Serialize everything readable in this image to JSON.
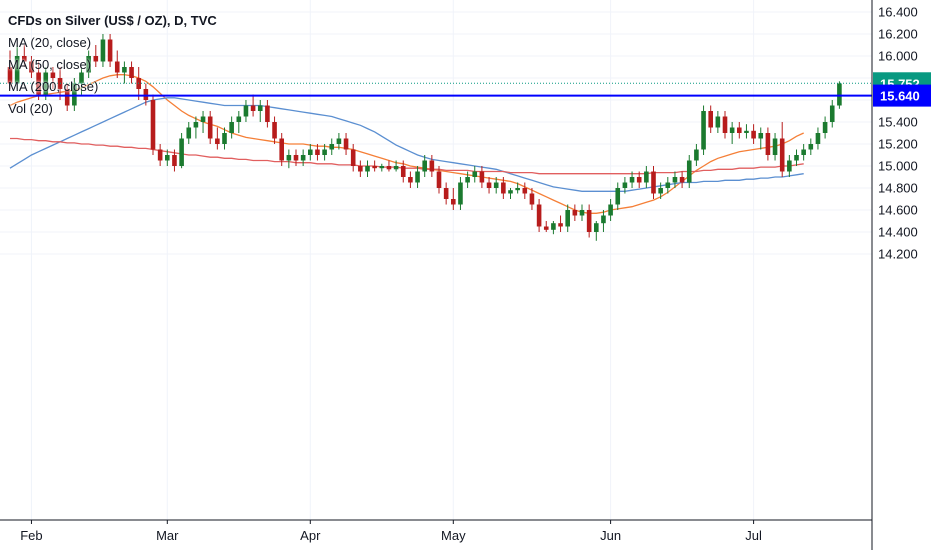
{
  "header": {
    "title": "CFDs on Silver (US$ / OZ), D, TVC",
    "indicators": [
      "MA (20, close)",
      "MA (50, close)",
      "MA (200, close)",
      "Vol (20)"
    ]
  },
  "chart_data": {
    "type": "candlestick",
    "title": "CFDs on Silver (US$ / OZ), D, TVC",
    "ylim": [
      14.1,
      16.5
    ],
    "y_ticks": [
      "14.200",
      "14.400",
      "14.600",
      "14.800",
      "15.000",
      "15.200",
      "15.400",
      "15.600",
      "15.800",
      "16.000",
      "16.200",
      "16.400"
    ],
    "x_ticks": [
      {
        "label": "Feb",
        "index": 3
      },
      {
        "label": "Mar",
        "index": 22
      },
      {
        "label": "Apr",
        "index": 42
      },
      {
        "label": "May",
        "index": 62
      },
      {
        "label": "Jun",
        "index": 84
      },
      {
        "label": "Jul",
        "index": 104
      }
    ],
    "horizontal_line": {
      "value": 15.64,
      "label": "15.640",
      "color": "#0000ff"
    },
    "last_price": {
      "value": 15.752,
      "label": "15.752",
      "color": "#089981"
    },
    "candles": [
      {
        "o": 15.9,
        "h": 16.05,
        "l": 15.7,
        "c": 15.75
      },
      {
        "o": 15.75,
        "h": 16.1,
        "l": 15.7,
        "c": 16.0
      },
      {
        "o": 16.0,
        "h": 16.1,
        "l": 15.9,
        "c": 15.95
      },
      {
        "o": 15.95,
        "h": 16.0,
        "l": 15.8,
        "c": 15.85
      },
      {
        "o": 15.85,
        "h": 15.95,
        "l": 15.6,
        "c": 15.65
      },
      {
        "o": 15.65,
        "h": 15.9,
        "l": 15.6,
        "c": 15.85
      },
      {
        "o": 15.85,
        "h": 15.9,
        "l": 15.7,
        "c": 15.8
      },
      {
        "o": 15.8,
        "h": 15.9,
        "l": 15.6,
        "c": 15.7
      },
      {
        "o": 15.7,
        "h": 15.75,
        "l": 15.5,
        "c": 15.55
      },
      {
        "o": 15.55,
        "h": 15.8,
        "l": 15.5,
        "c": 15.75
      },
      {
        "o": 15.75,
        "h": 15.9,
        "l": 15.65,
        "c": 15.85
      },
      {
        "o": 15.85,
        "h": 16.05,
        "l": 15.8,
        "c": 16.0
      },
      {
        "o": 16.0,
        "h": 16.1,
        "l": 15.9,
        "c": 15.95
      },
      {
        "o": 15.95,
        "h": 16.2,
        "l": 15.9,
        "c": 16.15
      },
      {
        "o": 16.15,
        "h": 16.2,
        "l": 15.9,
        "c": 15.95
      },
      {
        "o": 15.95,
        "h": 16.05,
        "l": 15.8,
        "c": 15.85
      },
      {
        "o": 15.85,
        "h": 15.95,
        "l": 15.75,
        "c": 15.9
      },
      {
        "o": 15.9,
        "h": 15.95,
        "l": 15.75,
        "c": 15.8
      },
      {
        "o": 15.8,
        "h": 15.9,
        "l": 15.6,
        "c": 15.7
      },
      {
        "o": 15.7,
        "h": 15.75,
        "l": 15.55,
        "c": 15.6
      },
      {
        "o": 15.6,
        "h": 15.65,
        "l": 15.1,
        "c": 15.15
      },
      {
        "o": 15.15,
        "h": 15.2,
        "l": 15.0,
        "c": 15.05
      },
      {
        "o": 15.05,
        "h": 15.15,
        "l": 15.0,
        "c": 15.1
      },
      {
        "o": 15.1,
        "h": 15.15,
        "l": 14.95,
        "c": 15.0
      },
      {
        "o": 15.0,
        "h": 15.3,
        "l": 14.98,
        "c": 15.25
      },
      {
        "o": 15.25,
        "h": 15.4,
        "l": 15.2,
        "c": 15.35
      },
      {
        "o": 15.35,
        "h": 15.45,
        "l": 15.25,
        "c": 15.4
      },
      {
        "o": 15.4,
        "h": 15.5,
        "l": 15.3,
        "c": 15.45
      },
      {
        "o": 15.45,
        "h": 15.5,
        "l": 15.2,
        "c": 15.25
      },
      {
        "o": 15.25,
        "h": 15.35,
        "l": 15.15,
        "c": 15.2
      },
      {
        "o": 15.2,
        "h": 15.35,
        "l": 15.15,
        "c": 15.3
      },
      {
        "o": 15.3,
        "h": 15.45,
        "l": 15.25,
        "c": 15.4
      },
      {
        "o": 15.4,
        "h": 15.5,
        "l": 15.3,
        "c": 15.45
      },
      {
        "o": 15.45,
        "h": 15.6,
        "l": 15.4,
        "c": 15.55
      },
      {
        "o": 15.55,
        "h": 15.65,
        "l": 15.45,
        "c": 15.5
      },
      {
        "o": 15.5,
        "h": 15.6,
        "l": 15.4,
        "c": 15.55
      },
      {
        "o": 15.55,
        "h": 15.6,
        "l": 15.35,
        "c": 15.4
      },
      {
        "o": 15.4,
        "h": 15.45,
        "l": 15.2,
        "c": 15.25
      },
      {
        "o": 15.25,
        "h": 15.3,
        "l": 15.0,
        "c": 15.05
      },
      {
        "o": 15.05,
        "h": 15.15,
        "l": 14.98,
        "c": 15.1
      },
      {
        "o": 15.1,
        "h": 15.15,
        "l": 15.0,
        "c": 15.05
      },
      {
        "o": 15.05,
        "h": 15.15,
        "l": 15.0,
        "c": 15.1
      },
      {
        "o": 15.1,
        "h": 15.2,
        "l": 15.05,
        "c": 15.15
      },
      {
        "o": 15.15,
        "h": 15.2,
        "l": 15.05,
        "c": 15.1
      },
      {
        "o": 15.1,
        "h": 15.2,
        "l": 15.05,
        "c": 15.15
      },
      {
        "o": 15.15,
        "h": 15.25,
        "l": 15.1,
        "c": 15.2
      },
      {
        "o": 15.2,
        "h": 15.3,
        "l": 15.15,
        "c": 15.25
      },
      {
        "o": 15.25,
        "h": 15.3,
        "l": 15.1,
        "c": 15.15
      },
      {
        "o": 15.15,
        "h": 15.2,
        "l": 14.95,
        "c": 15.0
      },
      {
        "o": 15.0,
        "h": 15.05,
        "l": 14.9,
        "c": 14.95
      },
      {
        "o": 14.95,
        "h": 15.05,
        "l": 14.9,
        "c": 15.0
      },
      {
        "o": 15.0,
        "h": 15.05,
        "l": 14.95,
        "c": 14.98
      },
      {
        "o": 14.98,
        "h": 15.02,
        "l": 14.95,
        "c": 15.0
      },
      {
        "o": 15.0,
        "h": 15.05,
        "l": 14.95,
        "c": 14.97
      },
      {
        "o": 14.97,
        "h": 15.05,
        "l": 14.95,
        "c": 15.0
      },
      {
        "o": 15.0,
        "h": 15.05,
        "l": 14.85,
        "c": 14.9
      },
      {
        "o": 14.9,
        "h": 14.95,
        "l": 14.8,
        "c": 14.85
      },
      {
        "o": 14.85,
        "h": 15.0,
        "l": 14.8,
        "c": 14.95
      },
      {
        "o": 14.95,
        "h": 15.1,
        "l": 14.9,
        "c": 15.05
      },
      {
        "o": 15.05,
        "h": 15.1,
        "l": 14.9,
        "c": 14.95
      },
      {
        "o": 14.95,
        "h": 15.0,
        "l": 14.75,
        "c": 14.8
      },
      {
        "o": 14.8,
        "h": 14.85,
        "l": 14.65,
        "c": 14.7
      },
      {
        "o": 14.7,
        "h": 14.8,
        "l": 14.6,
        "c": 14.65
      },
      {
        "o": 14.65,
        "h": 14.9,
        "l": 14.6,
        "c": 14.85
      },
      {
        "o": 14.85,
        "h": 14.95,
        "l": 14.8,
        "c": 14.9
      },
      {
        "o": 14.9,
        "h": 15.0,
        "l": 14.85,
        "c": 14.95
      },
      {
        "o": 14.95,
        "h": 15.0,
        "l": 14.8,
        "c": 14.85
      },
      {
        "o": 14.85,
        "h": 14.9,
        "l": 14.75,
        "c": 14.8
      },
      {
        "o": 14.8,
        "h": 14.9,
        "l": 14.75,
        "c": 14.85
      },
      {
        "o": 14.85,
        "h": 14.9,
        "l": 14.7,
        "c": 14.75
      },
      {
        "o": 14.75,
        "h": 14.8,
        "l": 14.7,
        "c": 14.78
      },
      {
        "o": 14.78,
        "h": 14.85,
        "l": 14.75,
        "c": 14.8
      },
      {
        "o": 14.8,
        "h": 14.85,
        "l": 14.7,
        "c": 14.75
      },
      {
        "o": 14.75,
        "h": 14.8,
        "l": 14.6,
        "c": 14.65
      },
      {
        "o": 14.65,
        "h": 14.7,
        "l": 14.4,
        "c": 14.45
      },
      {
        "o": 14.45,
        "h": 14.5,
        "l": 14.4,
        "c": 14.42
      },
      {
        "o": 14.42,
        "h": 14.5,
        "l": 14.38,
        "c": 14.48
      },
      {
        "o": 14.48,
        "h": 14.55,
        "l": 14.4,
        "c": 14.45
      },
      {
        "o": 14.45,
        "h": 14.65,
        "l": 14.4,
        "c": 14.6
      },
      {
        "o": 14.6,
        "h": 14.65,
        "l": 14.5,
        "c": 14.55
      },
      {
        "o": 14.55,
        "h": 14.65,
        "l": 14.5,
        "c": 14.6
      },
      {
        "o": 14.6,
        "h": 14.65,
        "l": 14.35,
        "c": 14.4
      },
      {
        "o": 14.4,
        "h": 14.5,
        "l": 14.32,
        "c": 14.48
      },
      {
        "o": 14.48,
        "h": 14.6,
        "l": 14.4,
        "c": 14.55
      },
      {
        "o": 14.55,
        "h": 14.7,
        "l": 14.5,
        "c": 14.65
      },
      {
        "o": 14.65,
        "h": 14.85,
        "l": 14.6,
        "c": 14.8
      },
      {
        "o": 14.8,
        "h": 14.9,
        "l": 14.75,
        "c": 14.85
      },
      {
        "o": 14.85,
        "h": 14.95,
        "l": 14.8,
        "c": 14.9
      },
      {
        "o": 14.9,
        "h": 14.95,
        "l": 14.8,
        "c": 14.85
      },
      {
        "o": 14.85,
        "h": 15.0,
        "l": 14.8,
        "c": 14.95
      },
      {
        "o": 14.95,
        "h": 15.0,
        "l": 14.7,
        "c": 14.75
      },
      {
        "o": 14.75,
        "h": 14.85,
        "l": 14.7,
        "c": 14.8
      },
      {
        "o": 14.8,
        "h": 14.9,
        "l": 14.75,
        "c": 14.85
      },
      {
        "o": 14.85,
        "h": 14.95,
        "l": 14.8,
        "c": 14.9
      },
      {
        "o": 14.9,
        "h": 14.95,
        "l": 14.8,
        "c": 14.85
      },
      {
        "o": 14.85,
        "h": 15.1,
        "l": 14.8,
        "c": 15.05
      },
      {
        "o": 15.05,
        "h": 15.2,
        "l": 15.0,
        "c": 15.15
      },
      {
        "o": 15.15,
        "h": 15.55,
        "l": 15.1,
        "c": 15.5
      },
      {
        "o": 15.5,
        "h": 15.55,
        "l": 15.3,
        "c": 15.35
      },
      {
        "o": 15.35,
        "h": 15.5,
        "l": 15.3,
        "c": 15.45
      },
      {
        "o": 15.45,
        "h": 15.5,
        "l": 15.25,
        "c": 15.3
      },
      {
        "o": 15.3,
        "h": 15.4,
        "l": 15.2,
        "c": 15.35
      },
      {
        "o": 15.35,
        "h": 15.4,
        "l": 15.25,
        "c": 15.3
      },
      {
        "o": 15.3,
        "h": 15.38,
        "l": 15.25,
        "c": 15.32
      },
      {
        "o": 15.32,
        "h": 15.38,
        "l": 15.2,
        "c": 15.25
      },
      {
        "o": 15.25,
        "h": 15.35,
        "l": 15.15,
        "c": 15.3
      },
      {
        "o": 15.3,
        "h": 15.35,
        "l": 15.05,
        "c": 15.1
      },
      {
        "o": 15.1,
        "h": 15.3,
        "l": 15.05,
        "c": 15.25
      },
      {
        "o": 15.25,
        "h": 15.4,
        "l": 14.9,
        "c": 14.95
      },
      {
        "o": 14.95,
        "h": 15.1,
        "l": 14.9,
        "c": 15.05
      },
      {
        "o": 15.05,
        "h": 15.15,
        "l": 15.0,
        "c": 15.1
      },
      {
        "o": 15.1,
        "h": 15.2,
        "l": 15.05,
        "c": 15.15
      },
      {
        "o": 15.15,
        "h": 15.25,
        "l": 15.1,
        "c": 15.2
      },
      {
        "o": 15.2,
        "h": 15.35,
        "l": 15.15,
        "c": 15.3
      },
      {
        "o": 15.3,
        "h": 15.45,
        "l": 15.25,
        "c": 15.4
      },
      {
        "o": 15.4,
        "h": 15.6,
        "l": 15.35,
        "c": 15.55
      },
      {
        "o": 15.55,
        "h": 15.77,
        "l": 15.52,
        "c": 15.75
      }
    ],
    "ma_series": [
      {
        "name": "MA (20, close)",
        "color": "#f57f37",
        "values": [
          15.55,
          15.58,
          15.6,
          15.62,
          15.64,
          15.65,
          15.66,
          15.67,
          15.68,
          15.69,
          15.71,
          15.74,
          15.77,
          15.8,
          15.82,
          15.83,
          15.83,
          15.82,
          15.8,
          15.77,
          15.72,
          15.66,
          15.6,
          15.55,
          15.5,
          15.46,
          15.43,
          15.4,
          15.38,
          15.36,
          15.33,
          15.3,
          15.28,
          15.26,
          15.25,
          15.24,
          15.23,
          15.22,
          15.21,
          15.2,
          15.2,
          15.2,
          15.19,
          15.18,
          15.18,
          15.17,
          15.17,
          15.16,
          15.15,
          15.13,
          15.11,
          15.09,
          15.07,
          15.05,
          15.03,
          15.02,
          15.0,
          14.99,
          14.98,
          14.97,
          14.96,
          14.95,
          14.94,
          14.93,
          14.92,
          14.91,
          14.9,
          14.89,
          14.88,
          14.87,
          14.86,
          14.84,
          14.81,
          14.78,
          14.75,
          14.72,
          14.69,
          14.66,
          14.63,
          14.6,
          14.58,
          14.57,
          14.57,
          14.58,
          14.6,
          14.61,
          14.62,
          14.63,
          14.65,
          14.67,
          14.69,
          14.72,
          14.76,
          14.81,
          14.86,
          14.91,
          14.96,
          15.0,
          15.04,
          15.07,
          15.09,
          15.11,
          15.13,
          15.14,
          15.15,
          15.16,
          15.17,
          15.18,
          15.2,
          15.23,
          15.27,
          15.3
        ]
      },
      {
        "name": "MA (50, close)",
        "color": "#5b8fd1",
        "values": [
          14.98,
          15.02,
          15.06,
          15.1,
          15.13,
          15.16,
          15.19,
          15.22,
          15.25,
          15.28,
          15.31,
          15.34,
          15.37,
          15.4,
          15.43,
          15.46,
          15.49,
          15.52,
          15.55,
          15.58,
          15.6,
          15.61,
          15.62,
          15.62,
          15.61,
          15.6,
          15.59,
          15.58,
          15.57,
          15.56,
          15.55,
          15.55,
          15.55,
          15.55,
          15.55,
          15.55,
          15.54,
          15.53,
          15.52,
          15.51,
          15.5,
          15.49,
          15.48,
          15.47,
          15.46,
          15.45,
          15.43,
          15.41,
          15.39,
          15.37,
          15.34,
          15.31,
          15.27,
          15.23,
          15.19,
          15.16,
          15.13,
          15.1,
          15.08,
          15.06,
          15.05,
          15.04,
          15.03,
          15.02,
          15.01,
          15.0,
          14.99,
          14.98,
          14.97,
          14.95,
          14.93,
          14.91,
          14.89,
          14.87,
          14.85,
          14.83,
          14.81,
          14.8,
          14.79,
          14.78,
          14.77,
          14.77,
          14.77,
          14.77,
          14.77,
          14.77,
          14.77,
          14.78,
          14.79,
          14.8,
          14.81,
          14.82,
          14.83,
          14.84,
          14.85,
          14.85,
          14.85,
          14.86,
          14.86,
          14.86,
          14.87,
          14.87,
          14.87,
          14.88,
          14.88,
          14.89,
          14.89,
          14.9,
          14.9,
          14.91,
          14.92,
          14.93
        ]
      },
      {
        "name": "MA (200, close)",
        "color": "#e15f5f",
        "values": [
          15.25,
          15.25,
          15.24,
          15.24,
          15.23,
          15.23,
          15.22,
          15.22,
          15.21,
          15.21,
          15.2,
          15.2,
          15.19,
          15.19,
          15.18,
          15.18,
          15.17,
          15.17,
          15.16,
          15.16,
          15.15,
          15.14,
          15.13,
          15.12,
          15.11,
          15.1,
          15.1,
          15.09,
          15.08,
          15.08,
          15.07,
          15.07,
          15.06,
          15.06,
          15.05,
          15.05,
          15.05,
          15.04,
          15.04,
          15.04,
          15.03,
          15.03,
          15.03,
          15.02,
          15.02,
          15.02,
          15.01,
          15.01,
          15.01,
          15.0,
          15.0,
          15.0,
          14.99,
          14.99,
          14.99,
          14.98,
          14.98,
          14.98,
          14.97,
          14.97,
          14.97,
          14.96,
          14.96,
          14.96,
          14.96,
          14.95,
          14.95,
          14.95,
          14.95,
          14.95,
          14.94,
          14.94,
          14.94,
          14.94,
          14.93,
          14.93,
          14.93,
          14.93,
          14.93,
          14.93,
          14.93,
          14.93,
          14.93,
          14.93,
          14.93,
          14.93,
          14.93,
          14.93,
          14.93,
          14.93,
          14.94,
          14.94,
          14.94,
          14.94,
          14.95,
          14.95,
          14.95,
          14.96,
          14.96,
          14.97,
          14.97,
          14.97,
          14.98,
          14.98,
          14.98,
          14.99,
          14.99,
          14.99,
          15.0,
          15.0,
          15.01,
          15.02
        ]
      }
    ]
  }
}
